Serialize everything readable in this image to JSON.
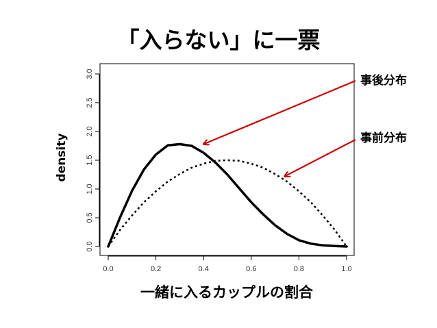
{
  "slide": {
    "title": "「入らない」に一票"
  },
  "chart_data": {
    "type": "line",
    "xlabel": "一緒に入るカップルの割合",
    "ylabel": "density",
    "xlim": [
      0,
      1
    ],
    "ylim": [
      0,
      3
    ],
    "x_ticks": [
      "0.0",
      "0.2",
      "0.4",
      "0.6",
      "0.8",
      "1.0"
    ],
    "y_ticks": [
      "0.0",
      "0.5",
      "1.0",
      "1.5",
      "2.0",
      "2.5",
      "3.0"
    ],
    "grid": false,
    "series": [
      {
        "name": "事後分布",
        "style": "solid",
        "color": "#000000",
        "x": [
          0.0,
          0.05,
          0.1,
          0.15,
          0.2,
          0.25,
          0.3,
          0.35,
          0.4,
          0.45,
          0.5,
          0.55,
          0.6,
          0.65,
          0.7,
          0.75,
          0.8,
          0.85,
          0.9,
          0.95,
          1.0
        ],
        "y": [
          0.0,
          0.51,
          0.97,
          1.34,
          1.6,
          1.76,
          1.78,
          1.75,
          1.63,
          1.46,
          1.25,
          1.01,
          0.77,
          0.56,
          0.37,
          0.22,
          0.11,
          0.05,
          0.02,
          0.01,
          0.0
        ]
      },
      {
        "name": "事前分布",
        "style": "dotted",
        "color": "#000000",
        "x": [
          0.0,
          0.05,
          0.1,
          0.15,
          0.2,
          0.25,
          0.3,
          0.35,
          0.4,
          0.45,
          0.5,
          0.55,
          0.6,
          0.65,
          0.7,
          0.75,
          0.8,
          0.85,
          0.9,
          0.95,
          1.0
        ],
        "y": [
          0.0,
          0.29,
          0.54,
          0.77,
          0.96,
          1.13,
          1.26,
          1.37,
          1.44,
          1.49,
          1.5,
          1.49,
          1.44,
          1.37,
          1.26,
          1.13,
          0.96,
          0.77,
          0.54,
          0.29,
          0.0
        ]
      }
    ],
    "annotations": [
      {
        "text": "事後分布",
        "color": "#cc0000",
        "arrow_to": [
          0.4,
          1.78
        ]
      },
      {
        "text": "事前分布",
        "color": "#cc0000",
        "arrow_to": [
          0.74,
          1.22
        ]
      }
    ]
  }
}
